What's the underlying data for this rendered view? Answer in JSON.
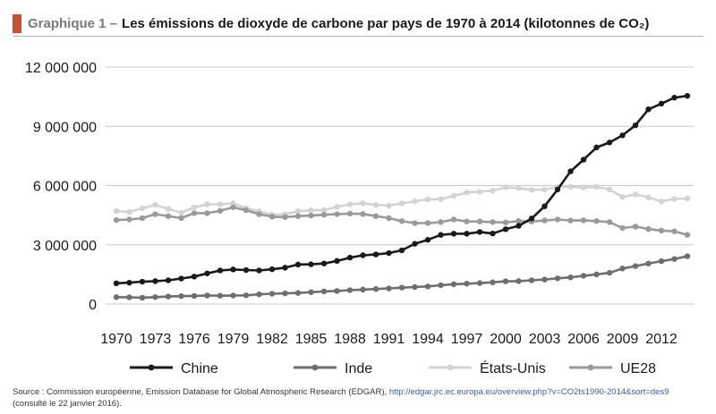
{
  "title": {
    "prefix": "Graphique 1 –",
    "text": "Les émissions de dioxyde de carbone par pays de 1970 à 2014 (kilotonnes de CO₂)"
  },
  "source": {
    "text": "Source : Commission européenne, Emission Database for Global Atmospheric Research (EDGAR),",
    "link": "http://edgar.jrc.ec.europa.eu/overview.php?v=CO2ts1990-2014&sort=des9",
    "note": "(consulté le 22 janvier 2016)."
  },
  "colors": {
    "chine": "#1a1a1a",
    "inde": "#6e6e6e",
    "etats_unis": "#d3d3d3",
    "ue28": "#9a9a9a",
    "grid": "#c8c8c8",
    "title_marker": "#c0533a"
  },
  "chart_data": {
    "type": "line",
    "title": "Les émissions de dioxyde de carbone par pays de 1970 à 2014 (kilotonnes de CO₂)",
    "xlabel": "",
    "ylabel": "",
    "ylim": [
      0,
      12000000
    ],
    "xlim": [
      1970,
      2014
    ],
    "yticks": [
      0,
      3000000,
      6000000,
      9000000,
      12000000
    ],
    "ytick_labels": [
      "0",
      "3 000 000",
      "6 000 000",
      "9 000 000",
      "12 000 000"
    ],
    "xticks": [
      1970,
      1973,
      1976,
      1979,
      1982,
      1985,
      1988,
      1991,
      1994,
      1997,
      2000,
      2003,
      2006,
      2009,
      2012
    ],
    "xtick_labels": [
      "1970",
      "1973",
      "1976",
      "1979",
      "1982",
      "1985",
      "1988",
      "1991",
      "1994",
      "1997",
      "2000",
      "2003",
      "2006",
      "2009",
      "2012"
    ],
    "grid": true,
    "legend_position": "bottom",
    "x": [
      1970,
      1971,
      1972,
      1973,
      1974,
      1975,
      1976,
      1977,
      1978,
      1979,
      1980,
      1981,
      1982,
      1983,
      1984,
      1985,
      1986,
      1987,
      1988,
      1989,
      1990,
      1991,
      1992,
      1993,
      1994,
      1995,
      1996,
      1997,
      1998,
      1999,
      2000,
      2001,
      2002,
      2003,
      2004,
      2005,
      2006,
      2007,
      2008,
      2009,
      2010,
      2011,
      2012,
      2013,
      2014
    ],
    "series": [
      {
        "name": "Chine",
        "color_key": "chine",
        "values": [
          1050000,
          1080000,
          1130000,
          1160000,
          1200000,
          1290000,
          1390000,
          1550000,
          1700000,
          1750000,
          1720000,
          1700000,
          1760000,
          1840000,
          2000000,
          2010000,
          2050000,
          2180000,
          2350000,
          2470000,
          2510000,
          2580000,
          2720000,
          3050000,
          3250000,
          3500000,
          3560000,
          3560000,
          3650000,
          3570000,
          3790000,
          3960000,
          4330000,
          4950000,
          5800000,
          6720000,
          7310000,
          7930000,
          8180000,
          8540000,
          9050000,
          9860000,
          10150000,
          10450000,
          10540000
        ]
      },
      {
        "name": "Inde",
        "color_key": "inde",
        "values": [
          350000,
          340000,
          320000,
          350000,
          380000,
          400000,
          410000,
          430000,
          420000,
          430000,
          440000,
          490000,
          520000,
          540000,
          560000,
          600000,
          640000,
          660000,
          700000,
          730000,
          760000,
          790000,
          830000,
          860000,
          890000,
          950000,
          1000000,
          1030000,
          1060000,
          1100000,
          1150000,
          1160000,
          1200000,
          1240000,
          1300000,
          1350000,
          1430000,
          1500000,
          1580000,
          1800000,
          1920000,
          2050000,
          2170000,
          2280000,
          2420000
        ]
      },
      {
        "name": "États-Unis",
        "color_key": "etats_unis",
        "values": [
          4700000,
          4660000,
          4850000,
          5020000,
          4820000,
          4620000,
          4900000,
          5050000,
          5050000,
          5100000,
          4850000,
          4700000,
          4520000,
          4550000,
          4700000,
          4750000,
          4750000,
          4920000,
          5050000,
          5100000,
          5020000,
          4980000,
          5100000,
          5200000,
          5300000,
          5310000,
          5480000,
          5650000,
          5690000,
          5740000,
          5910000,
          5870000,
          5780000,
          5790000,
          5930000,
          5930000,
          5900000,
          5930000,
          5800000,
          5420000,
          5550000,
          5400000,
          5200000,
          5320000,
          5350000
        ]
      },
      {
        "name": "UE28",
        "color_key": "ue28",
        "values": [
          4250000,
          4280000,
          4350000,
          4550000,
          4450000,
          4350000,
          4600000,
          4600000,
          4720000,
          4900000,
          4750000,
          4550000,
          4420000,
          4400000,
          4450000,
          4480000,
          4520000,
          4550000,
          4580000,
          4560000,
          4450000,
          4350000,
          4200000,
          4100000,
          4100000,
          4150000,
          4280000,
          4180000,
          4180000,
          4150000,
          4130000,
          4200000,
          4180000,
          4230000,
          4280000,
          4230000,
          4240000,
          4200000,
          4150000,
          3850000,
          3920000,
          3800000,
          3720000,
          3680000,
          3500000
        ]
      }
    ]
  }
}
